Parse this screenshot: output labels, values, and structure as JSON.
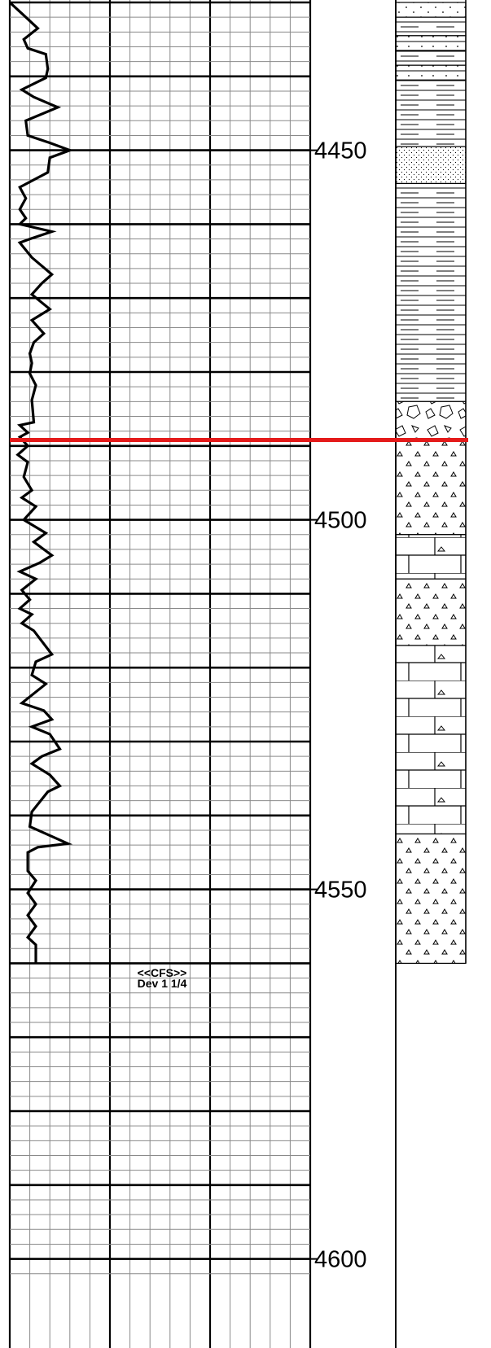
{
  "chart_data": {
    "type": "line",
    "title": "",
    "xlabel": "",
    "ylabel": "",
    "y_axis_reversed": true,
    "ylim": [
      4430,
      4602
    ],
    "depth_ticks": [
      "4450",
      "4500",
      "4550",
      "4600"
    ],
    "curve": {
      "color": "#000000",
      "points": [
        [
          0,
          4430.0
        ],
        [
          6,
          4431.5
        ],
        [
          14,
          4433.5
        ],
        [
          7,
          4435.0
        ],
        [
          9,
          4436.2
        ],
        [
          18,
          4437.0
        ],
        [
          19,
          4439.0
        ],
        [
          18,
          4440.2
        ],
        [
          6,
          4441.8
        ],
        [
          12,
          4442.8
        ],
        [
          24,
          4444.2
        ],
        [
          8,
          4446.0
        ],
        [
          9,
          4448.0
        ],
        [
          20,
          4449.0
        ],
        [
          30,
          4450.0
        ],
        [
          20,
          4451.0
        ],
        [
          19,
          4453.0
        ],
        [
          5,
          4455.0
        ],
        [
          8,
          4456.5
        ],
        [
          5,
          4458.0
        ],
        [
          8,
          4459.2
        ],
        [
          5,
          4460.0
        ],
        [
          21,
          4461.0
        ],
        [
          10,
          4462.0
        ],
        [
          5,
          4462.5
        ],
        [
          11,
          4464.5
        ],
        [
          21,
          4466.8
        ],
        [
          16,
          4468.0
        ],
        [
          11,
          4469.5
        ],
        [
          20,
          4471.5
        ],
        [
          11,
          4473.0
        ],
        [
          17,
          4474.8
        ],
        [
          12,
          4476.0
        ],
        [
          10,
          4477.5
        ],
        [
          11,
          4478.8
        ],
        [
          10,
          4480.2
        ],
        [
          13,
          4481.8
        ],
        [
          11,
          4483.8
        ],
        [
          12,
          4486.8
        ],
        [
          5,
          4487.2
        ],
        [
          9,
          4488.2
        ],
        [
          5,
          4488.8
        ],
        [
          9,
          4490.0
        ],
        [
          4,
          4491.2
        ],
        [
          9,
          4492.2
        ],
        [
          7,
          4494.2
        ],
        [
          11,
          4496.0
        ],
        [
          6,
          4497.0
        ],
        [
          13,
          4498.2
        ],
        [
          7,
          4500.0
        ],
        [
          18,
          4501.8
        ],
        [
          12,
          4503.0
        ],
        [
          21,
          4504.8
        ],
        [
          15,
          4505.8
        ],
        [
          5,
          4507.0
        ],
        [
          13,
          4508.0
        ],
        [
          6,
          4509.5
        ],
        [
          10,
          4510.8
        ],
        [
          5,
          4512.0
        ],
        [
          11,
          4512.8
        ],
        [
          6,
          4514.0
        ],
        [
          12,
          4515.0
        ],
        [
          21,
          4518.2
        ],
        [
          13,
          4519.2
        ],
        [
          11,
          4521.0
        ],
        [
          18,
          4522.2
        ],
        [
          6,
          4524.8
        ],
        [
          17,
          4525.8
        ],
        [
          21,
          4527.0
        ],
        [
          11,
          4528.0
        ],
        [
          20,
          4529.0
        ],
        [
          25,
          4531.0
        ],
        [
          16,
          4532.0
        ],
        [
          11,
          4533.0
        ],
        [
          20,
          4534.5
        ],
        [
          25,
          4536.0
        ],
        [
          19,
          4536.8
        ],
        [
          11,
          4539.5
        ],
        [
          10,
          4541.5
        ],
        [
          29,
          4543.8
        ],
        [
          14,
          4544.3
        ],
        [
          9,
          4545.0
        ],
        [
          9,
          4547.5
        ],
        [
          13,
          4548.8
        ],
        [
          9,
          4550.5
        ],
        [
          13,
          4552.0
        ],
        [
          9,
          4553.5
        ],
        [
          13,
          4555.0
        ],
        [
          9,
          4556.5
        ],
        [
          13,
          4557.5
        ],
        [
          13,
          4560.0
        ]
      ]
    },
    "marker_line": {
      "depth": 4489.2,
      "color": "#e41a1a"
    },
    "annotation": {
      "depth": 4561.5,
      "lines": [
        "<<CFS>>",
        "Dev 1 1/4"
      ]
    },
    "lithology": [
      {
        "top": 4430.0,
        "bottom": 4432.0,
        "rock": "sandstone"
      },
      {
        "top": 4432.0,
        "bottom": 4434.5,
        "rock": "shale"
      },
      {
        "top": 4434.5,
        "bottom": 4436.5,
        "rock": "siltstone"
      },
      {
        "top": 4436.5,
        "bottom": 4438.5,
        "rock": "shale"
      },
      {
        "top": 4438.5,
        "bottom": 4440.5,
        "rock": "siltstone"
      },
      {
        "top": 4440.5,
        "bottom": 4449.5,
        "rock": "shale"
      },
      {
        "top": 4449.5,
        "bottom": 4454.5,
        "rock": "fine-sandstone"
      },
      {
        "top": 4454.5,
        "bottom": 4484.0,
        "rock": "shale"
      },
      {
        "top": 4484.0,
        "bottom": 4489.2,
        "rock": "conglomerate"
      },
      {
        "top": 4489.2,
        "bottom": 4502.0,
        "rock": "chert"
      },
      {
        "top": 4502.0,
        "bottom": 4508.0,
        "rock": "cherty-limestone"
      },
      {
        "top": 4508.0,
        "bottom": 4517.0,
        "rock": "chert"
      },
      {
        "top": 4517.0,
        "bottom": 4542.5,
        "rock": "cherty-limestone"
      },
      {
        "top": 4542.5,
        "bottom": 4560.0,
        "rock": "chert"
      }
    ]
  }
}
